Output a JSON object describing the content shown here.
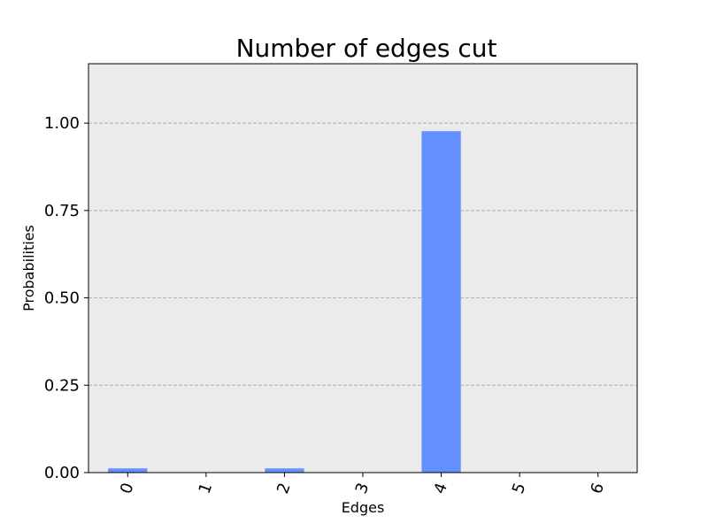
{
  "chart_data": {
    "type": "bar",
    "title": "Number of edges cut",
    "xlabel": "Edges",
    "ylabel": "Probabilities",
    "categories": [
      "0",
      "1",
      "2",
      "3",
      "4",
      "5",
      "6"
    ],
    "values": [
      0.012,
      0.0,
      0.012,
      0.0,
      0.977,
      0.0,
      0.0
    ],
    "ylim": [
      0,
      1.17
    ],
    "yticks": [
      "0.00",
      "0.25",
      "0.50",
      "0.75",
      "1.00"
    ],
    "ytick_values": [
      0,
      0.25,
      0.5,
      0.75,
      1.0
    ],
    "grid": true,
    "x_tick_rotation": "70°",
    "bar_color": "#648fff",
    "plot_background": "#ebebeb"
  }
}
